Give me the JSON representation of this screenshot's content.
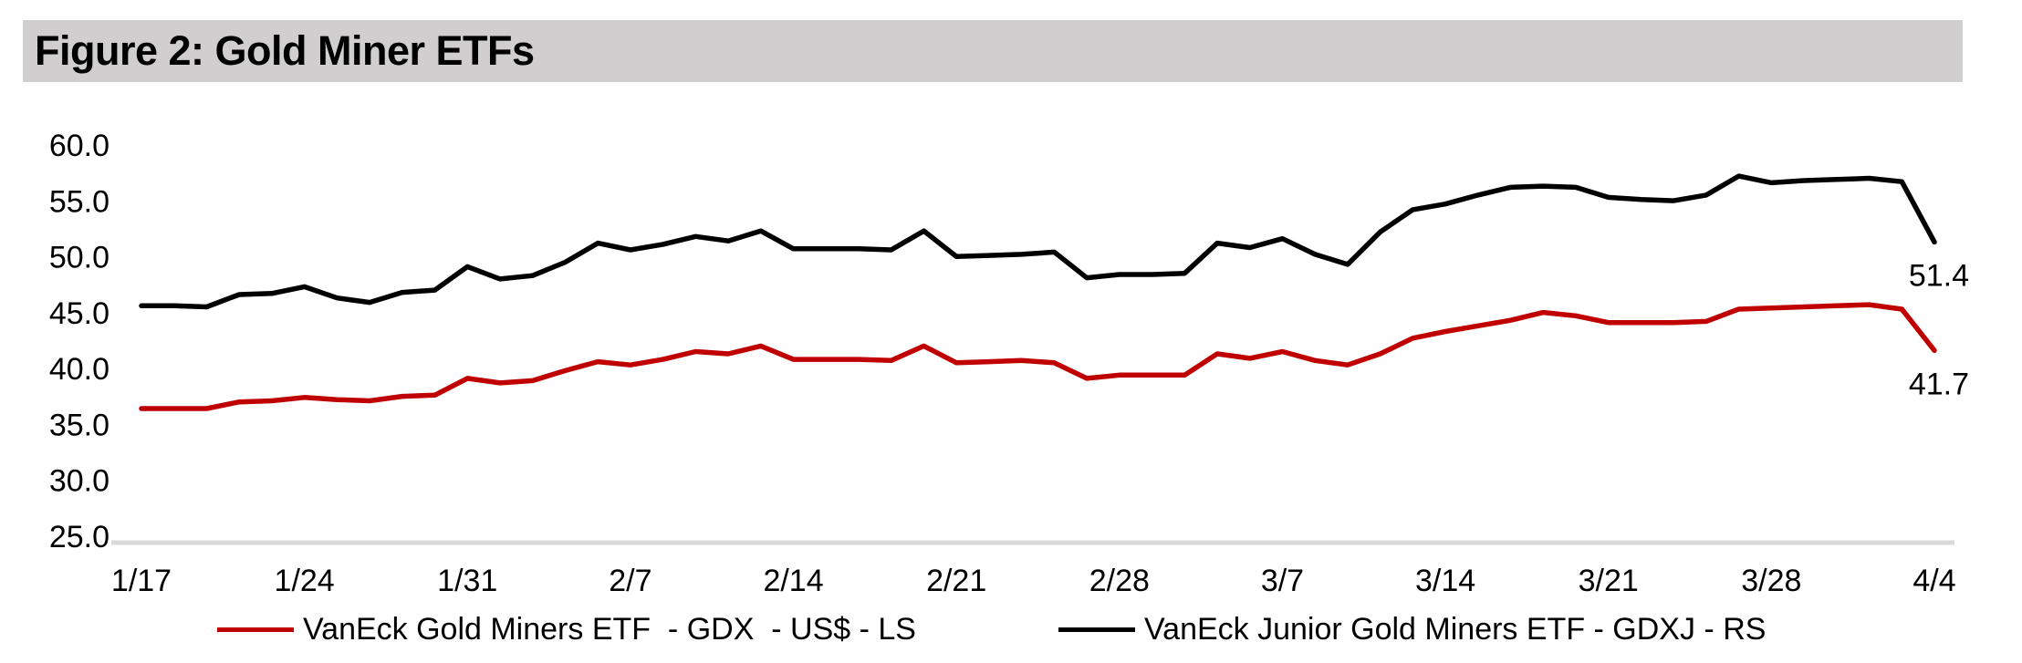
{
  "title": "Figure 2: Gold Miner ETFs",
  "colors": {
    "gdx_red": "#c00000",
    "gdxj_black": "#000000",
    "title_bar_bg": "#d0cece",
    "axis_line": "#d9d9d9",
    "text": "#000000"
  },
  "chart_data": {
    "type": "line",
    "title": "Figure 2: Gold Miner ETFs",
    "grid": false,
    "legend_position": "bottom",
    "ylim": [
      25.0,
      60.0
    ],
    "y_ticks": [
      60.0,
      55.0,
      50.0,
      45.0,
      40.0,
      35.0,
      30.0,
      25.0
    ],
    "x_tick_every": 5,
    "x_tick_labels": [
      "1/17",
      "1/24",
      "1/31",
      "2/7",
      "2/14",
      "2/21",
      "2/28",
      "3/7",
      "3/14",
      "3/21",
      "3/28",
      "4/4"
    ],
    "x": [
      "1/17",
      "1/20",
      "1/21",
      "1/22",
      "1/23",
      "1/24",
      "1/27",
      "1/28",
      "1/29",
      "1/30",
      "1/31",
      "2/3",
      "2/4",
      "2/5",
      "2/6",
      "2/7",
      "2/10",
      "2/11",
      "2/12",
      "2/13",
      "2/14",
      "2/17",
      "2/18",
      "2/19",
      "2/20",
      "2/21",
      "2/24",
      "2/25",
      "2/26",
      "2/27",
      "2/28",
      "3/3",
      "3/4",
      "3/5",
      "3/6",
      "3/7",
      "3/10",
      "3/11",
      "3/12",
      "3/13",
      "3/14",
      "3/17",
      "3/18",
      "3/19",
      "3/20",
      "3/21",
      "3/24",
      "3/25",
      "3/26",
      "3/27",
      "3/28",
      "3/31",
      "4/1",
      "4/2",
      "4/3",
      "4/4"
    ],
    "series": [
      {
        "id": "gdx-line",
        "name": "VanEck Gold Miners ETF  - GDX  - US$ - LS",
        "color": "#c00000",
        "scale": "LS",
        "end_label": "41.7",
        "values": [
          36.5,
          36.5,
          36.5,
          37.1,
          37.2,
          37.5,
          37.3,
          37.2,
          37.6,
          37.7,
          39.2,
          38.8,
          39.0,
          39.9,
          40.7,
          40.4,
          40.9,
          41.6,
          41.4,
          42.1,
          40.9,
          40.9,
          40.9,
          40.8,
          42.1,
          40.6,
          40.7,
          40.8,
          40.6,
          39.2,
          39.5,
          39.5,
          39.5,
          41.4,
          41.0,
          41.6,
          40.8,
          40.4,
          41.4,
          42.8,
          43.4,
          43.9,
          44.4,
          45.1,
          44.8,
          44.2,
          44.2,
          44.2,
          44.3,
          45.4,
          45.5,
          45.6,
          45.7,
          45.8,
          45.4,
          41.7
        ]
      },
      {
        "id": "gdxj-line",
        "name": "VanEck Junior Gold Miners ETF - GDXJ - RS",
        "color": "#000000",
        "scale": "RS",
        "end_label": "51.4",
        "values": [
          45.7,
          45.7,
          45.6,
          46.7,
          46.8,
          47.4,
          46.4,
          46.0,
          46.9,
          47.1,
          49.2,
          48.1,
          48.4,
          49.6,
          51.3,
          50.7,
          51.2,
          51.9,
          51.5,
          52.4,
          50.8,
          50.8,
          50.8,
          50.7,
          52.4,
          50.1,
          50.2,
          50.3,
          50.5,
          48.2,
          48.5,
          48.5,
          48.6,
          51.3,
          50.9,
          51.7,
          50.3,
          49.4,
          52.3,
          54.3,
          54.8,
          55.6,
          56.3,
          56.4,
          56.3,
          55.4,
          55.2,
          55.1,
          55.6,
          57.3,
          56.7,
          56.9,
          57.0,
          57.1,
          56.8,
          51.4
        ]
      }
    ]
  },
  "legend": {
    "items": [
      {
        "label": "VanEck Gold Miners ETF  - GDX  - US$ - LS",
        "color": "#c00000"
      },
      {
        "label": "VanEck Junior Gold Miners ETF - GDXJ - RS",
        "color": "#000000"
      }
    ]
  }
}
